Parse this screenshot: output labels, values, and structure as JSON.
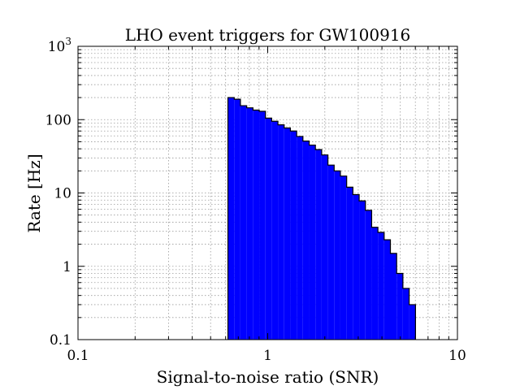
{
  "chart_data": {
    "type": "histogram",
    "title": "LHO event triggers for GW100916",
    "xlabel": "Signal-to-noise ratio (SNR)",
    "ylabel": "Rate [Hz]",
    "xscale": "log",
    "yscale": "log",
    "xlim": [
      0.1,
      10
    ],
    "ylim": [
      0.1,
      1000
    ],
    "grid": true,
    "x_ticks": [
      0.1,
      1,
      10
    ],
    "x_tick_labels": [
      "0.1",
      "1",
      "10"
    ],
    "y_ticks": [
      0.1,
      1,
      10,
      100,
      1000
    ],
    "y_tick_labels": [
      "0.1",
      "1",
      "10",
      "100",
      "10^3"
    ],
    "fill_color": "#0000ff",
    "edge_color": "#000000",
    "bin_edges": [
      0.617,
      0.666,
      0.718,
      0.775,
      0.836,
      0.902,
      0.973,
      1.049,
      1.132,
      1.221,
      1.317,
      1.421,
      1.533,
      1.654,
      1.784,
      1.925,
      2.077,
      2.24,
      2.416,
      2.607,
      2.812,
      3.034,
      3.273,
      3.531,
      3.809,
      4.109,
      4.433,
      4.782,
      5.159,
      5.566
    ],
    "values": [
      200,
      190,
      155,
      145,
      135,
      130,
      105,
      95,
      85,
      77,
      70,
      59,
      51,
      45,
      39,
      33,
      24,
      20,
      17,
      12,
      9.5,
      7.8,
      5.8,
      3.4,
      2.9,
      2.3,
      1.5,
      0.8,
      0.5,
      0.3
    ]
  }
}
